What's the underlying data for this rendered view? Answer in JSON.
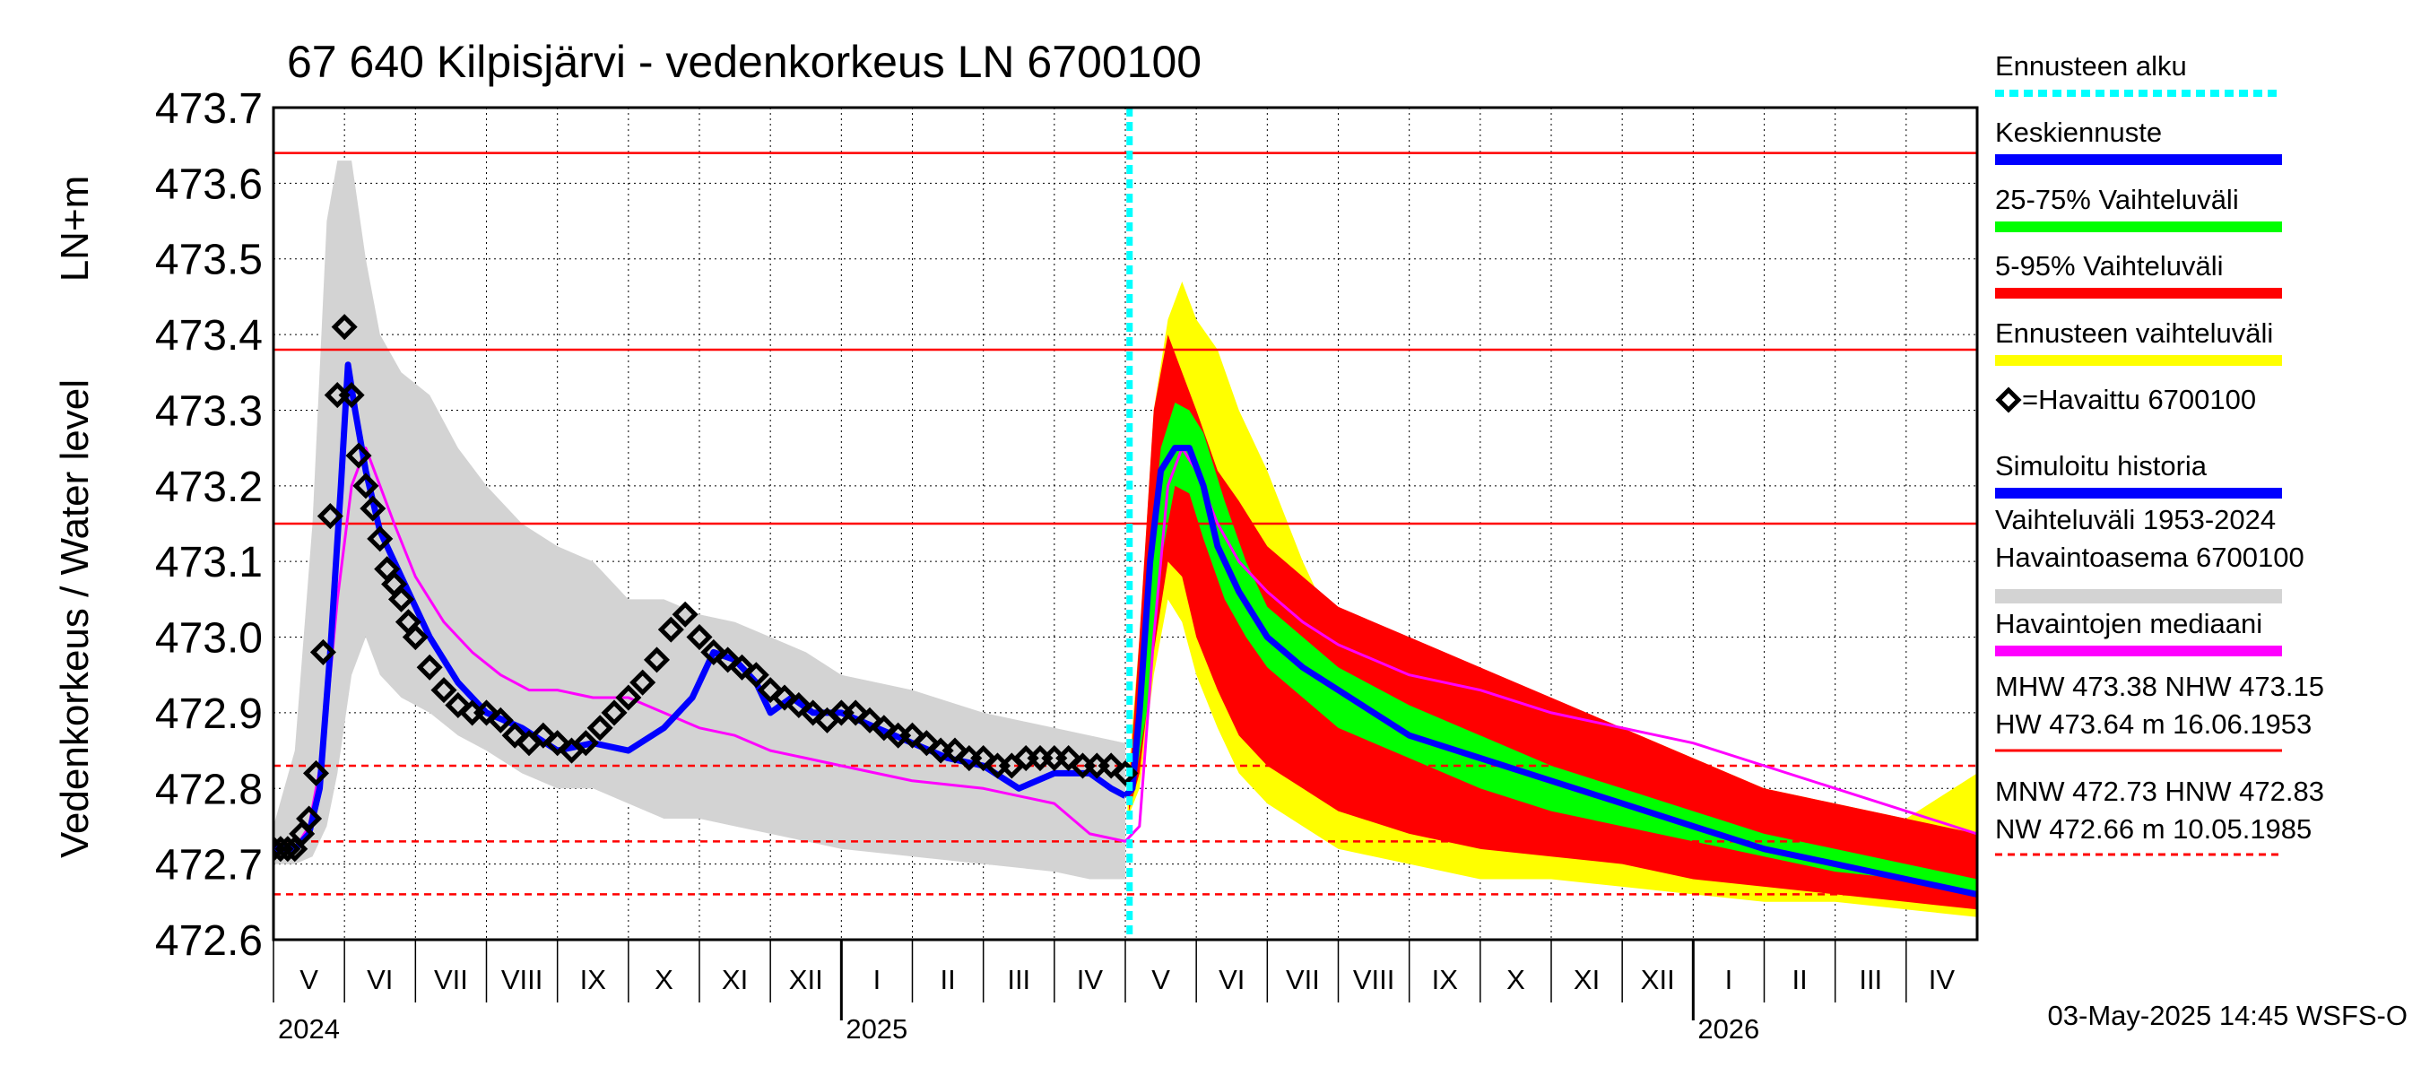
{
  "chart_data": {
    "type": "line",
    "title": "67 640 Kilpisjärvi - vedenkorkeus LN 6700100",
    "ylabel": "Vedenkorkeus / Water level",
    "yunit": "LN+m",
    "ylim": [
      472.6,
      473.7
    ],
    "yticks": [
      "473.7",
      "473.6",
      "473.5",
      "473.4",
      "473.3",
      "473.2",
      "473.1",
      "473.0",
      "472.9",
      "472.8",
      "472.7",
      "472.6"
    ],
    "x_axis": {
      "start": "2024-05-01",
      "end": "2026-05-01",
      "forecast_start": "2025-05-03",
      "months": [
        {
          "label": "V",
          "start": 0,
          "end": 1
        },
        {
          "label": "VI",
          "start": 1,
          "end": 2
        },
        {
          "label": "VII",
          "start": 2,
          "end": 3
        },
        {
          "label": "VIII",
          "start": 3,
          "end": 4
        },
        {
          "label": "IX",
          "start": 4,
          "end": 5
        },
        {
          "label": "X",
          "start": 5,
          "end": 6
        },
        {
          "label": "XI",
          "start": 6,
          "end": 7
        },
        {
          "label": "XII",
          "start": 7,
          "end": 8
        },
        {
          "label": "I",
          "start": 8,
          "end": 9
        },
        {
          "label": "II",
          "start": 9,
          "end": 10
        },
        {
          "label": "III",
          "start": 10,
          "end": 11
        },
        {
          "label": "IV",
          "start": 11,
          "end": 12
        },
        {
          "label": "V",
          "start": 12,
          "end": 13
        },
        {
          "label": "VI",
          "start": 13,
          "end": 14
        },
        {
          "label": "VII",
          "start": 14,
          "end": 15
        },
        {
          "label": "VIII",
          "start": 15,
          "end": 16
        },
        {
          "label": "IX",
          "start": 16,
          "end": 17
        },
        {
          "label": "X",
          "start": 17,
          "end": 18
        },
        {
          "label": "XI",
          "start": 18,
          "end": 19
        },
        {
          "label": "XII",
          "start": 19,
          "end": 20
        },
        {
          "label": "I",
          "start": 20,
          "end": 21
        },
        {
          "label": "II",
          "start": 21,
          "end": 22
        },
        {
          "label": "III",
          "start": 22,
          "end": 23
        },
        {
          "label": "IV",
          "start": 23,
          "end": 24
        }
      ],
      "years": [
        {
          "label": "2024",
          "month": 0
        },
        {
          "label": "2025",
          "month": 8
        },
        {
          "label": "2026",
          "month": 20
        }
      ]
    },
    "reference_lines": [
      {
        "name": "HW",
        "value": 473.64,
        "style": "solid"
      },
      {
        "name": "MHW",
        "value": 473.38,
        "style": "solid"
      },
      {
        "name": "NHW",
        "value": 473.15,
        "style": "solid"
      },
      {
        "name": "HNW",
        "value": 472.83,
        "style": "dashed"
      },
      {
        "name": "MNW",
        "value": 472.73,
        "style": "dashed"
      },
      {
        "name": "NW",
        "value": 472.66,
        "style": "dashed"
      }
    ],
    "series": [
      {
        "name": "Vaihteluväli 1953-2024 (min-max)",
        "color": "#d3d3d3",
        "x": [
          0,
          0.3,
          0.55,
          0.75,
          0.9,
          1.1,
          1.3,
          1.5,
          1.8,
          2.2,
          2.6,
          3.0,
          3.5,
          4.0,
          4.5,
          5.0,
          5.5,
          6.0,
          6.5,
          7.0,
          7.5,
          8.0,
          9.0,
          10.0,
          11.0,
          11.5,
          12.0
        ],
        "high": [
          472.75,
          472.85,
          473.15,
          473.55,
          473.63,
          473.63,
          473.5,
          473.4,
          473.35,
          473.32,
          473.25,
          473.2,
          473.15,
          473.12,
          473.1,
          473.05,
          473.05,
          473.03,
          473.02,
          473.0,
          472.98,
          472.95,
          472.93,
          472.9,
          472.88,
          472.87,
          472.86
        ],
        "low": [
          472.7,
          472.7,
          472.71,
          472.75,
          472.82,
          472.95,
          473.0,
          472.95,
          472.92,
          472.9,
          472.87,
          472.85,
          472.82,
          472.8,
          472.8,
          472.78,
          472.76,
          472.76,
          472.75,
          472.74,
          472.73,
          472.72,
          472.71,
          472.7,
          472.69,
          472.68,
          472.68
        ]
      },
      {
        "name": "Ennusteen vaihteluväli",
        "color": "#ffff00",
        "x": [
          12.03,
          12.2,
          12.4,
          12.6,
          12.8,
          13.0,
          13.3,
          13.6,
          14.0,
          14.5,
          15.0,
          16.0,
          17.0,
          18.0,
          19.0,
          20.0,
          21.0,
          22.0,
          23.0,
          24.0
        ],
        "high": [
          472.8,
          473.0,
          473.3,
          473.42,
          473.47,
          473.42,
          473.38,
          473.3,
          473.22,
          473.1,
          473.0,
          472.95,
          472.95,
          472.9,
          472.88,
          472.84,
          472.8,
          472.78,
          472.76,
          472.82
        ],
        "low": [
          472.76,
          472.8,
          472.95,
          473.05,
          473.02,
          472.95,
          472.88,
          472.82,
          472.78,
          472.75,
          472.72,
          472.7,
          472.68,
          472.68,
          472.67,
          472.66,
          472.65,
          472.65,
          472.64,
          472.63
        ]
      },
      {
        "name": "5-95% Vaihteluväli",
        "color": "#ff0000",
        "x": [
          12.05,
          12.2,
          12.4,
          12.6,
          12.8,
          13.0,
          13.3,
          13.6,
          14.0,
          14.5,
          15.0,
          16.0,
          17.0,
          18.0,
          19.0,
          20.0,
          21.0,
          22.0,
          23.0,
          24.0
        ],
        "high": [
          472.8,
          473.0,
          473.3,
          473.4,
          473.35,
          473.3,
          473.22,
          473.18,
          473.12,
          473.08,
          473.04,
          473.0,
          472.96,
          472.92,
          472.88,
          472.84,
          472.8,
          472.78,
          472.76,
          472.74
        ],
        "low": [
          472.77,
          472.82,
          472.98,
          473.1,
          473.08,
          473.0,
          472.93,
          472.87,
          472.83,
          472.8,
          472.77,
          472.74,
          472.72,
          472.71,
          472.7,
          472.68,
          472.67,
          472.66,
          472.65,
          472.64
        ]
      },
      {
        "name": "25-75% Vaihteluväli",
        "color": "#00ff00",
        "x": [
          12.1,
          12.3,
          12.5,
          12.7,
          12.9,
          13.1,
          13.4,
          13.7,
          14.0,
          14.5,
          15.0,
          16.0,
          17.0,
          18.0,
          19.0,
          20.0,
          21.0,
          22.0,
          23.0,
          24.0
        ],
        "high": [
          472.82,
          473.05,
          473.25,
          473.31,
          473.3,
          473.27,
          473.18,
          473.1,
          473.04,
          473.0,
          472.96,
          472.91,
          472.87,
          472.83,
          472.8,
          472.77,
          472.74,
          472.72,
          472.7,
          472.68
        ],
        "low": [
          472.79,
          472.9,
          473.1,
          473.2,
          473.19,
          473.13,
          473.05,
          473.0,
          472.96,
          472.92,
          472.88,
          472.84,
          472.8,
          472.77,
          472.75,
          472.73,
          472.71,
          472.69,
          472.68,
          472.66
        ]
      },
      {
        "name": "Havaintojen mediaani",
        "color": "#ff00ff",
        "x": [
          0,
          0.3,
          0.5,
          0.7,
          0.9,
          1.1,
          1.3,
          1.5,
          1.7,
          2.0,
          2.4,
          2.8,
          3.2,
          3.6,
          4.0,
          4.5,
          5.0,
          5.5,
          6.0,
          6.5,
          7.0,
          7.5,
          8.0,
          9.0,
          10.0,
          11.0,
          11.5,
          12.0,
          12.2,
          12.4,
          12.6,
          12.8,
          13.0,
          13.3,
          13.6,
          14.0,
          14.5,
          15.0,
          16.0,
          17.0,
          18.0,
          19.0,
          20.0,
          21.0,
          22.0,
          23.0,
          24.0
        ],
        "y": [
          472.72,
          472.72,
          472.75,
          472.85,
          473.05,
          473.2,
          473.25,
          473.2,
          473.15,
          473.08,
          473.02,
          472.98,
          472.95,
          472.93,
          472.93,
          472.92,
          472.92,
          472.9,
          472.88,
          472.87,
          472.85,
          472.84,
          472.83,
          472.81,
          472.8,
          472.78,
          472.74,
          472.73,
          472.75,
          473.0,
          473.2,
          473.25,
          473.22,
          473.15,
          473.1,
          473.06,
          473.02,
          472.99,
          472.95,
          472.93,
          472.9,
          472.88,
          472.86,
          472.83,
          472.8,
          472.77,
          472.74
        ]
      },
      {
        "name": "Simuloitu historia",
        "color": "#0000ff",
        "x": [
          0,
          0.3,
          0.5,
          0.65,
          0.8,
          0.95,
          1.05,
          1.15,
          1.3,
          1.5,
          1.8,
          2.2,
          2.6,
          3.0,
          3.5,
          4.0,
          4.5,
          5.0,
          5.5,
          5.9,
          6.2,
          6.5,
          6.8,
          7.0,
          7.3,
          7.6,
          8.0,
          8.5,
          9.0,
          9.5,
          10.0,
          10.5,
          11.0,
          11.5,
          11.8,
          12.0
        ],
        "y": [
          472.72,
          472.72,
          472.74,
          472.8,
          472.98,
          473.2,
          473.36,
          473.3,
          473.22,
          473.14,
          473.08,
          473.0,
          472.94,
          472.9,
          472.88,
          472.85,
          472.86,
          472.85,
          472.88,
          472.92,
          472.98,
          472.97,
          472.94,
          472.9,
          472.92,
          472.9,
          472.9,
          472.88,
          472.86,
          472.84,
          472.83,
          472.8,
          472.82,
          472.82,
          472.8,
          472.79
        ]
      },
      {
        "name": "Keskiennuste",
        "color": "#0000ff",
        "x": [
          12.0,
          12.1,
          12.2,
          12.35,
          12.5,
          12.7,
          12.9,
          13.1,
          13.3,
          13.6,
          14.0,
          14.5,
          15.0,
          15.5,
          16.0,
          17.0,
          18.0,
          19.0,
          20.0,
          21.0,
          22.0,
          23.0,
          24.0
        ],
        "y": [
          472.79,
          472.8,
          472.9,
          473.1,
          473.22,
          473.25,
          473.25,
          473.2,
          473.12,
          473.06,
          473.0,
          472.96,
          472.93,
          472.9,
          472.87,
          472.84,
          472.81,
          472.78,
          472.75,
          472.72,
          472.7,
          472.68,
          472.66
        ]
      },
      {
        "name": "Havaittu 6700100",
        "color": "#000000",
        "marker": "diamond",
        "x": [
          0.0,
          0.1,
          0.2,
          0.3,
          0.4,
          0.5,
          0.6,
          0.7,
          0.8,
          0.9,
          1.0,
          1.1,
          1.2,
          1.3,
          1.4,
          1.5,
          1.6,
          1.7,
          1.8,
          1.9,
          2.0,
          2.2,
          2.4,
          2.6,
          2.8,
          3.0,
          3.2,
          3.4,
          3.6,
          3.8,
          4.0,
          4.2,
          4.4,
          4.6,
          4.8,
          5.0,
          5.2,
          5.4,
          5.6,
          5.8,
          6.0,
          6.2,
          6.4,
          6.6,
          6.8,
          7.0,
          7.2,
          7.4,
          7.6,
          7.8,
          8.0,
          8.2,
          8.4,
          8.6,
          8.8,
          9.0,
          9.2,
          9.4,
          9.6,
          9.8,
          10.0,
          10.2,
          10.4,
          10.6,
          10.8,
          11.0,
          11.2,
          11.4,
          11.6,
          11.8,
          12.0
        ],
        "y": [
          472.72,
          472.72,
          472.72,
          472.72,
          472.74,
          472.76,
          472.82,
          472.98,
          473.16,
          473.32,
          473.41,
          473.32,
          473.24,
          473.2,
          473.17,
          473.13,
          473.09,
          473.07,
          473.05,
          473.02,
          473.0,
          472.96,
          472.93,
          472.91,
          472.9,
          472.9,
          472.89,
          472.87,
          472.86,
          472.87,
          472.86,
          472.85,
          472.86,
          472.88,
          472.9,
          472.92,
          472.94,
          472.97,
          473.01,
          473.03,
          473.0,
          472.98,
          472.97,
          472.96,
          472.95,
          472.93,
          472.92,
          472.91,
          472.9,
          472.89,
          472.9,
          472.9,
          472.89,
          472.88,
          472.87,
          472.87,
          472.86,
          472.85,
          472.85,
          472.84,
          472.84,
          472.83,
          472.83,
          472.84,
          472.84,
          472.84,
          472.84,
          472.83,
          472.83,
          472.83,
          472.82
        ]
      }
    ],
    "legend": [
      {
        "label": "Ennusteen alku",
        "color": "#00ffff",
        "style": "dotted"
      },
      {
        "label": "Keskiennuste",
        "color": "#0000ff",
        "style": "solid"
      },
      {
        "label": "25-75% Vaihteluväli",
        "color": "#00ff00",
        "style": "solid"
      },
      {
        "label": "5-95% Vaihteluväli",
        "color": "#ff0000",
        "style": "solid"
      },
      {
        "label": "Ennusteen vaihteluväli",
        "color": "#ffff00",
        "style": "solid"
      },
      {
        "label": "=Havaittu 6700100",
        "color": "#000000",
        "style": "diamond"
      },
      {
        "label": "Simuloitu historia",
        "color": "#0000ff",
        "style": "solid"
      },
      {
        "label": "Vaihteluväli 1953-2024",
        "label2": " Havaintoasema 6700100",
        "color": "#d3d3d3",
        "style": "solid"
      },
      {
        "label": "Havaintojen mediaani",
        "color": "#ff00ff",
        "style": "solid"
      }
    ],
    "stats": {
      "line1": "MHW 473.38 NHW 473.15",
      "line2": "HW 473.64 m 16.06.1953",
      "line3": "MNW 472.73 HNW 472.83",
      "line4": "NW 472.66 m 10.05.1985"
    },
    "footer": "03-May-2025 14:45 WSFS-O"
  }
}
